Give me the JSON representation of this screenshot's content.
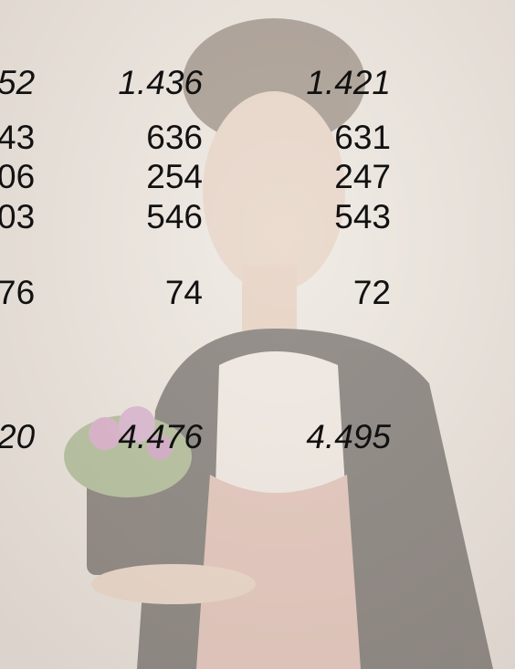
{
  "table": {
    "rows": [
      [
        "52",
        "1.436",
        "1.421"
      ],
      [
        "43",
        "636",
        "631"
      ],
      [
        "06",
        "254",
        "247"
      ],
      [
        "03",
        "546",
        "543"
      ],
      [
        "76",
        "74",
        "72"
      ],
      [
        "20",
        "4.476",
        "4.495"
      ]
    ]
  }
}
